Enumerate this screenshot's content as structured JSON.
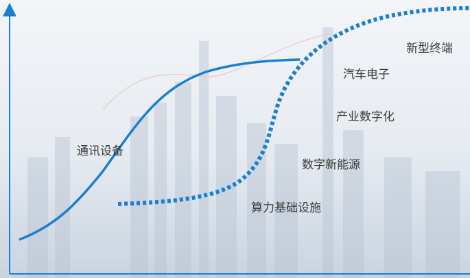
{
  "curves": {
    "first": {
      "label": "通讯设备"
    },
    "second": {
      "labels": [
        "算力基础设施",
        "数字新能源",
        "产业数字化",
        "汽车电子",
        "新型终端"
      ]
    }
  }
}
